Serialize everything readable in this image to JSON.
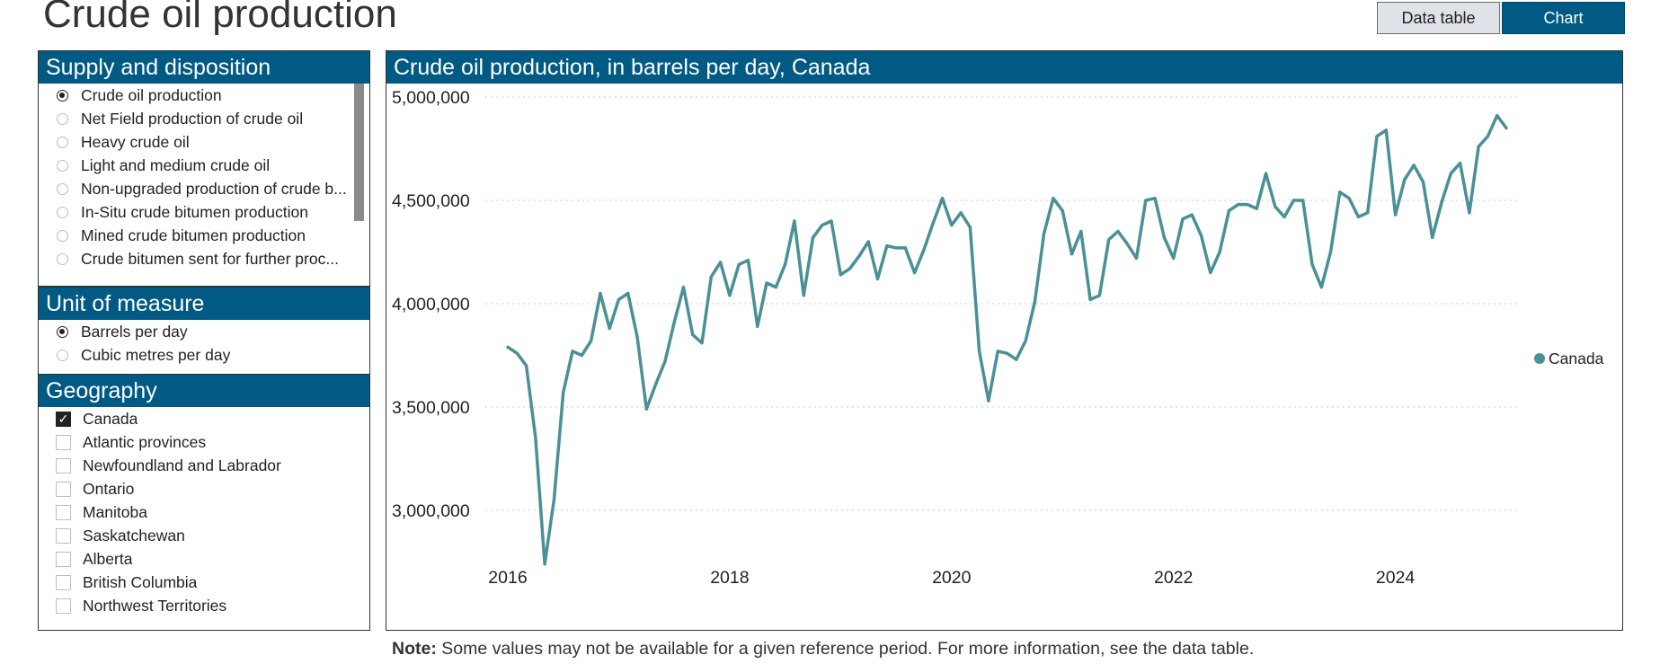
{
  "page": {
    "title": "Crude oil production"
  },
  "view_toggle": {
    "data_table_label": "Data table",
    "chart_label": "Chart",
    "active": "Chart"
  },
  "supply_panel": {
    "title": "Supply and disposition",
    "items": [
      {
        "label": "Crude oil production",
        "selected": true
      },
      {
        "label": "Net Field production of crude oil",
        "selected": false
      },
      {
        "label": "Heavy crude oil",
        "selected": false
      },
      {
        "label": "Light and medium crude oil",
        "selected": false
      },
      {
        "label": "Non-upgraded production of crude b...",
        "selected": false
      },
      {
        "label": "In-Situ crude bitumen production",
        "selected": false
      },
      {
        "label": "Mined crude bitumen production",
        "selected": false
      },
      {
        "label": "Crude bitumen sent for further proc...",
        "selected": false
      }
    ]
  },
  "unit_panel": {
    "title": "Unit of measure",
    "items": [
      {
        "label": "Barrels per day",
        "selected": true
      },
      {
        "label": "Cubic metres per day",
        "selected": false
      }
    ]
  },
  "geo_panel": {
    "title": "Geography",
    "items": [
      {
        "label": "Canada",
        "checked": true
      },
      {
        "label": "Atlantic provinces",
        "checked": false
      },
      {
        "label": "Newfoundland and Labrador",
        "checked": false
      },
      {
        "label": "Ontario",
        "checked": false
      },
      {
        "label": "Manitoba",
        "checked": false
      },
      {
        "label": "Saskatchewan",
        "checked": false
      },
      {
        "label": "Alberta",
        "checked": false
      },
      {
        "label": "British Columbia",
        "checked": false
      },
      {
        "label": "Northwest Territories",
        "checked": false
      }
    ]
  },
  "chart_panel": {
    "title": "Crude oil production, in barrels per day, Canada"
  },
  "note": {
    "label": "Note:",
    "text": " Some values may not be available for a given reference period. For more information, see the data table."
  },
  "chart_data": {
    "type": "line",
    "title": "Crude oil production, in barrels per day, Canada",
    "xlabel": "",
    "ylabel": "",
    "x_ticks": [
      "2016",
      "2018",
      "2020",
      "2022",
      "2024"
    ],
    "y_ticks": [
      "3,000,000",
      "3,500,000",
      "4,000,000",
      "4,500,000",
      "5,000,000"
    ],
    "y_tick_values": [
      3000000,
      3500000,
      4000000,
      4500000,
      5000000
    ],
    "ylim": [
      2720000,
      5000000
    ],
    "xlim": [
      "2016-01",
      "2025-01"
    ],
    "grid": true,
    "legend_position": "right",
    "series": [
      {
        "name": "Canada",
        "color": "#4a9097",
        "x": [
          "2016-01",
          "2016-02",
          "2016-03",
          "2016-04",
          "2016-05",
          "2016-06",
          "2016-07",
          "2016-08",
          "2016-09",
          "2016-10",
          "2016-11",
          "2016-12",
          "2017-01",
          "2017-02",
          "2017-03",
          "2017-04",
          "2017-05",
          "2017-06",
          "2017-07",
          "2017-08",
          "2017-09",
          "2017-10",
          "2017-11",
          "2017-12",
          "2018-01",
          "2018-02",
          "2018-03",
          "2018-04",
          "2018-05",
          "2018-06",
          "2018-07",
          "2018-08",
          "2018-09",
          "2018-10",
          "2018-11",
          "2018-12",
          "2019-01",
          "2019-02",
          "2019-03",
          "2019-04",
          "2019-05",
          "2019-06",
          "2019-07",
          "2019-08",
          "2019-09",
          "2019-10",
          "2019-11",
          "2019-12",
          "2020-01",
          "2020-02",
          "2020-03",
          "2020-04",
          "2020-05",
          "2020-06",
          "2020-07",
          "2020-08",
          "2020-09",
          "2020-10",
          "2020-11",
          "2020-12",
          "2021-01",
          "2021-02",
          "2021-03",
          "2021-04",
          "2021-05",
          "2021-06",
          "2021-07",
          "2021-08",
          "2021-09",
          "2021-10",
          "2021-11",
          "2021-12",
          "2022-01",
          "2022-02",
          "2022-03",
          "2022-04",
          "2022-05",
          "2022-06",
          "2022-07",
          "2022-08",
          "2022-09",
          "2022-10",
          "2022-11",
          "2022-12",
          "2023-01",
          "2023-02",
          "2023-03",
          "2023-04",
          "2023-05",
          "2023-06",
          "2023-07",
          "2023-08",
          "2023-09",
          "2023-10",
          "2023-11",
          "2023-12",
          "2024-01",
          "2024-02",
          "2024-03",
          "2024-04",
          "2024-05",
          "2024-06",
          "2024-07",
          "2024-08",
          "2024-09",
          "2024-10",
          "2024-11",
          "2024-12",
          "2025-01"
        ],
        "values": [
          3790000,
          3760000,
          3700000,
          3350000,
          2740000,
          3050000,
          3570000,
          3770000,
          3750000,
          3820000,
          4050000,
          3880000,
          4020000,
          4050000,
          3840000,
          3490000,
          3610000,
          3720000,
          3910000,
          4080000,
          3850000,
          3810000,
          4130000,
          4200000,
          4040000,
          4190000,
          4210000,
          3890000,
          4100000,
          4080000,
          4190000,
          4400000,
          4040000,
          4320000,
          4380000,
          4400000,
          4140000,
          4170000,
          4230000,
          4300000,
          4120000,
          4280000,
          4270000,
          4270000,
          4150000,
          4260000,
          4390000,
          4510000,
          4380000,
          4440000,
          4370000,
          3770000,
          3530000,
          3770000,
          3760000,
          3730000,
          3820000,
          4010000,
          4340000,
          4510000,
          4450000,
          4240000,
          4350000,
          4020000,
          4040000,
          4310000,
          4350000,
          4290000,
          4220000,
          4500000,
          4510000,
          4320000,
          4220000,
          4410000,
          4430000,
          4330000,
          4150000,
          4250000,
          4450000,
          4480000,
          4480000,
          4460000,
          4630000,
          4470000,
          4420000,
          4500000,
          4500000,
          4190000,
          4080000,
          4250000,
          4540000,
          4510000,
          4420000,
          4440000,
          4810000,
          4840000,
          4430000,
          4600000,
          4670000,
          4590000,
          4320000,
          4490000,
          4630000,
          4680000,
          4440000,
          4760000,
          4810000,
          4910000,
          4850000
        ]
      }
    ]
  }
}
